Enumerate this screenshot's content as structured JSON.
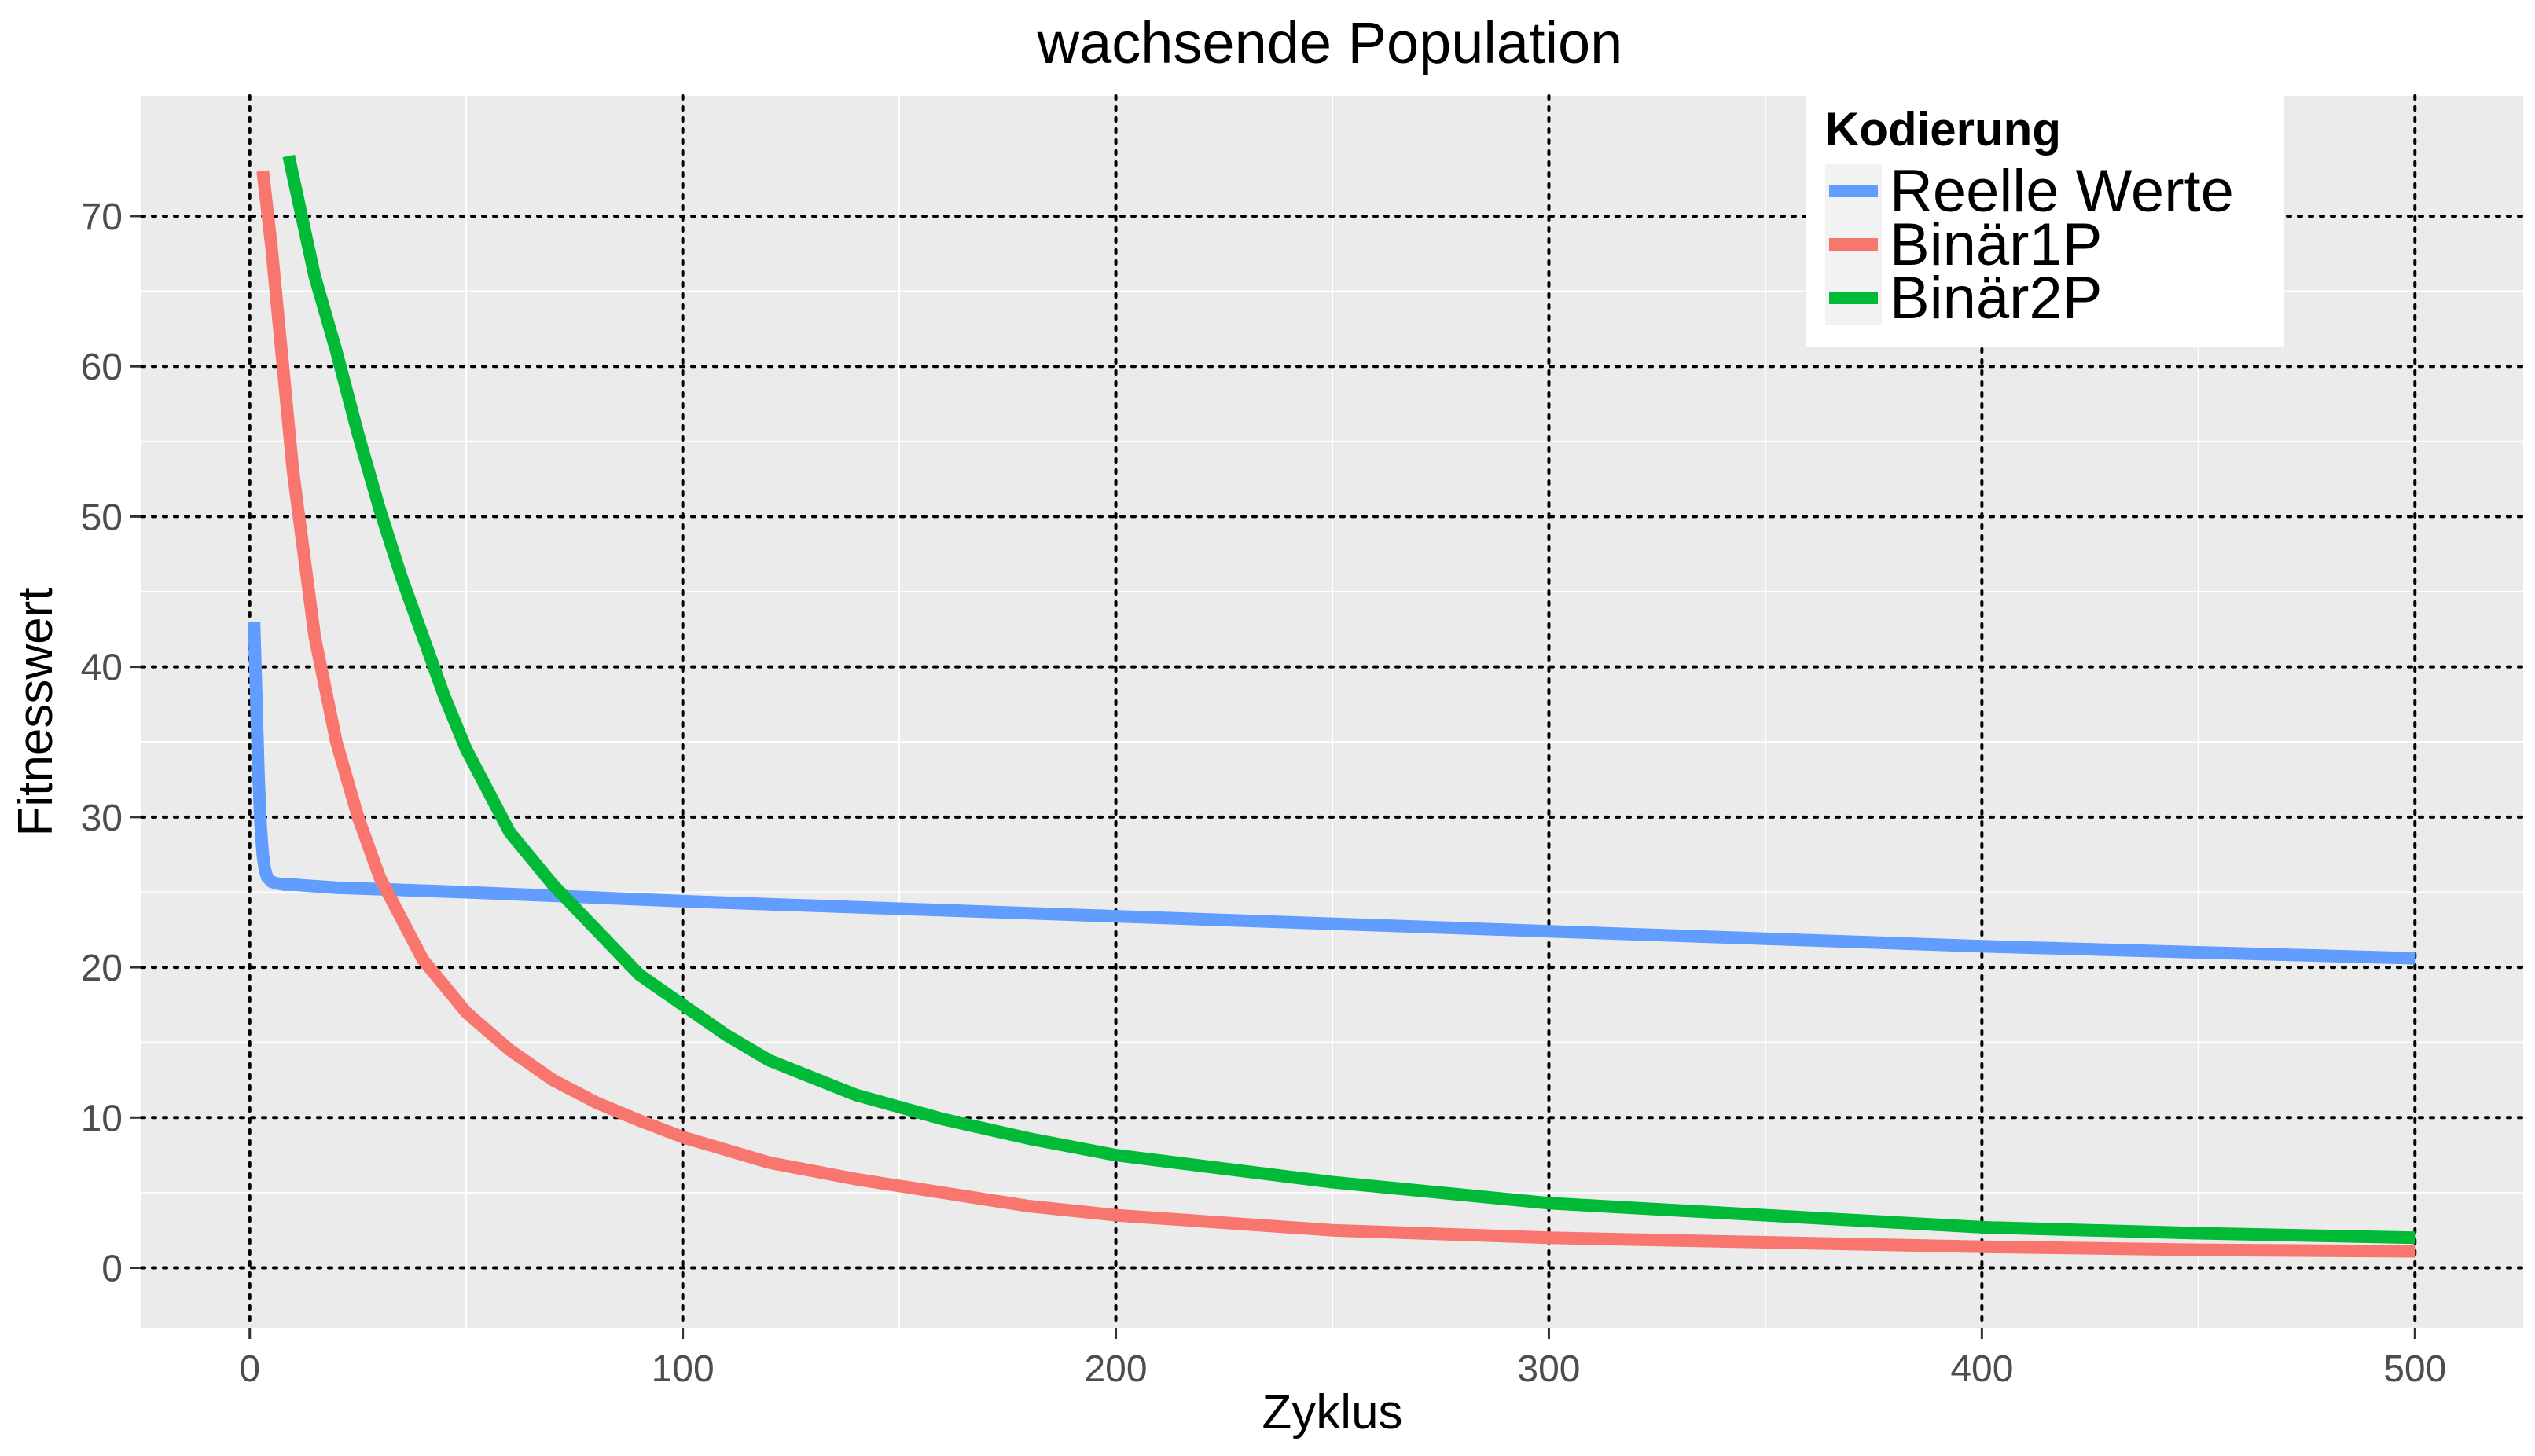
{
  "chart_data": {
    "type": "line",
    "title": "wachsende Population",
    "xlabel": "Zyklus",
    "ylabel": "Fitnesswert",
    "xlim": [
      -25,
      525
    ],
    "ylim": [
      -4,
      78
    ],
    "x_ticks": [
      0,
      100,
      200,
      300,
      400,
      500
    ],
    "y_ticks": [
      0,
      10,
      20,
      30,
      40,
      50,
      60,
      70
    ],
    "grid": true,
    "legend": {
      "title": "Kodierung",
      "placement": "top-right"
    },
    "series": [
      {
        "name": "Reelle Werte",
        "color": "#619CFF",
        "x": [
          1,
          1.5,
          2,
          2.5,
          3,
          3.5,
          4,
          5,
          6,
          8,
          10,
          20,
          50,
          100,
          150,
          200,
          250,
          300,
          350,
          400,
          450,
          500
        ],
        "y": [
          43,
          38,
          33,
          29.5,
          27.5,
          26.5,
          26,
          25.7,
          25.6,
          25.5,
          25.5,
          25.3,
          25.0,
          24.4,
          23.9,
          23.4,
          22.9,
          22.4,
          21.9,
          21.4,
          21.0,
          20.6
        ]
      },
      {
        "name": "Binär1P",
        "color": "#F8766D",
        "x": [
          3,
          5,
          7,
          10,
          15,
          20,
          25,
          30,
          40,
          50,
          60,
          70,
          80,
          90,
          100,
          120,
          140,
          160,
          180,
          200,
          250,
          300,
          350,
          400,
          450,
          500
        ],
        "y": [
          73,
          68,
          62,
          53,
          42,
          35,
          30,
          26,
          20.5,
          17,
          14.5,
          12.5,
          11,
          9.8,
          8.7,
          7,
          5.9,
          5,
          4.1,
          3.5,
          2.5,
          2,
          1.7,
          1.4,
          1.2,
          1.1
        ]
      },
      {
        "name": "Binär2P",
        "color": "#00BA38",
        "x": [
          9,
          12,
          15,
          20,
          25,
          30,
          35,
          40,
          45,
          50,
          60,
          70,
          80,
          90,
          100,
          110,
          120,
          140,
          160,
          180,
          200,
          250,
          300,
          350,
          400,
          450,
          500
        ],
        "y": [
          74,
          70,
          66,
          61,
          55.5,
          50.5,
          46,
          42,
          38,
          34.5,
          29,
          25.5,
          22.5,
          19.5,
          17.5,
          15.5,
          13.8,
          11.5,
          9.9,
          8.6,
          7.5,
          5.7,
          4.3,
          3.5,
          2.7,
          2.3,
          2.0
        ]
      }
    ]
  }
}
